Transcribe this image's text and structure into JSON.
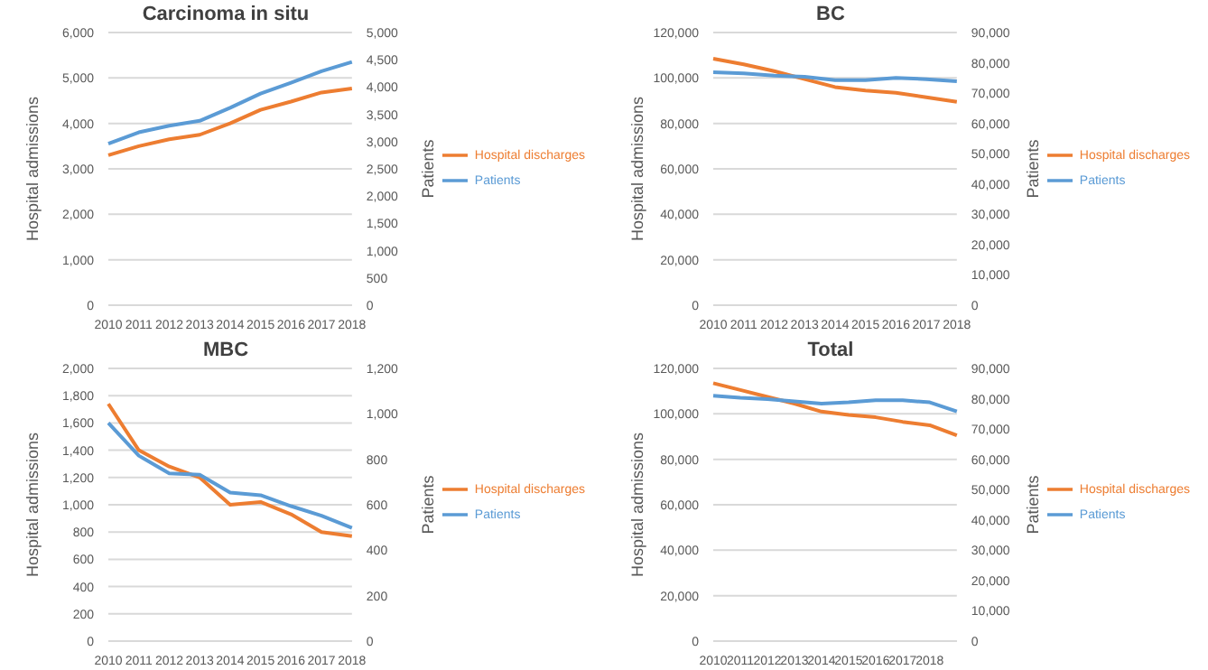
{
  "chart_data": [
    {
      "type": "line",
      "title": "Carcinoma in situ",
      "ylabel": "Hospital admissions",
      "y2label": "Patients",
      "categories": [
        "2010",
        "2011",
        "2012",
        "2013",
        "2014",
        "2015",
        "2016",
        "2017",
        "2018"
      ],
      "series": [
        {
          "name": "Hospital discharges",
          "color": "#ed7d31",
          "values": [
            3300,
            3500,
            3650,
            3750,
            4000,
            4300,
            4480,
            4680,
            4770
          ]
        },
        {
          "name": "Patients",
          "color": "#5b9bd5",
          "axis": "y2",
          "values": [
            2960,
            3170,
            3290,
            3380,
            3620,
            3880,
            4080,
            4290,
            4460
          ]
        }
      ],
      "ylim": [
        0,
        6000
      ],
      "yticks": [
        0,
        {
          "value": 1000,
          "label": "1,000"
        },
        {
          "value": 2000,
          "label": "2,000"
        },
        {
          "value": 3000,
          "label": "3,000"
        },
        {
          "value": 4000,
          "label": "4,000"
        },
        {
          "value": 5000,
          "label": "5,000"
        },
        {
          "value": 6000,
          "label": "6,000"
        }
      ],
      "y2lim": [
        0,
        5000
      ],
      "y2ticks": [
        0,
        500,
        {
          "value": 1000,
          "label": "1,000"
        },
        {
          "value": 1500,
          "label": "1,500"
        },
        {
          "value": 2000,
          "label": "2,000"
        },
        {
          "value": 2500,
          "label": "2,500"
        },
        {
          "value": 3000,
          "label": "3,000"
        },
        {
          "value": 3500,
          "label": "3,500"
        },
        {
          "value": 4000,
          "label": "4,000"
        },
        {
          "value": 4500,
          "label": "4,500"
        },
        {
          "value": 5000,
          "label": "5,000"
        }
      ],
      "grid": "y",
      "legend": "right",
      "marker": "none",
      "line_style": "solid"
    },
    {
      "type": "line",
      "title": "BC",
      "ylabel": "Hospital admissions",
      "y2label": "Patients",
      "categories": [
        "2010",
        "2011",
        "2012",
        "2013",
        "2014",
        "2015",
        "2016",
        "2017",
        "2018"
      ],
      "series": [
        {
          "name": "Hospital discharges",
          "color": "#ed7d31",
          "values": [
            108500,
            106000,
            103000,
            99500,
            96000,
            94500,
            93500,
            91500,
            89500
          ]
        },
        {
          "name": "Patients",
          "color": "#5b9bd5",
          "axis": "y2",
          "values": [
            76900,
            76500,
            75800,
            75400,
            74300,
            74300,
            75000,
            74600,
            73900
          ]
        }
      ],
      "ylim": [
        0,
        120000
      ],
      "yticks": [
        0,
        {
          "value": 20000,
          "label": "20,000"
        },
        {
          "value": 40000,
          "label": "40,000"
        },
        {
          "value": 60000,
          "label": "60,000"
        },
        {
          "value": 80000,
          "label": "80,000"
        },
        {
          "value": 100000,
          "label": "100,000"
        },
        {
          "value": 120000,
          "label": "120,000"
        }
      ],
      "y2lim": [
        0,
        90000
      ],
      "y2ticks": [
        0,
        {
          "value": 10000,
          "label": "10,000"
        },
        {
          "value": 20000,
          "label": "20,000"
        },
        {
          "value": 30000,
          "label": "30,000"
        },
        {
          "value": 40000,
          "label": "40,000"
        },
        {
          "value": 50000,
          "label": "50,000"
        },
        {
          "value": 60000,
          "label": "60,000"
        },
        {
          "value": 70000,
          "label": "70,000"
        },
        {
          "value": 80000,
          "label": "80,000"
        },
        {
          "value": 90000,
          "label": "90,000"
        }
      ],
      "grid": "y",
      "legend": "right",
      "marker": "none",
      "line_style": "solid"
    },
    {
      "type": "line",
      "title": "MBC",
      "ylabel": "Hospital admissions",
      "y2label": "Patients",
      "categories": [
        "2010",
        "2011",
        "2012",
        "2013",
        "2014",
        "2015",
        "2016",
        "2017",
        "2018"
      ],
      "series": [
        {
          "name": "Hospital discharges",
          "color": "#ed7d31",
          "values": [
            1740,
            1400,
            1280,
            1200,
            1000,
            1020,
            930,
            800,
            770
          ]
        },
        {
          "name": "Patients",
          "color": "#5b9bd5",
          "axis": "y2",
          "values": [
            960,
            816,
            738,
            732,
            654,
            642,
            594,
            552,
            498
          ]
        }
      ],
      "ylim": [
        0,
        2000
      ],
      "yticks": [
        0,
        200,
        400,
        600,
        800,
        {
          "value": 1000,
          "label": "1,000"
        },
        {
          "value": 1200,
          "label": "1,200"
        },
        {
          "value": 1400,
          "label": "1,400"
        },
        {
          "value": 1600,
          "label": "1,600"
        },
        {
          "value": 1800,
          "label": "1,800"
        },
        {
          "value": 2000,
          "label": "2,000"
        }
      ],
      "y2lim": [
        0,
        1200
      ],
      "y2ticks": [
        0,
        200,
        400,
        600,
        800,
        {
          "value": 1000,
          "label": "1,000"
        },
        {
          "value": 1200,
          "label": "1,200"
        }
      ],
      "grid": "y",
      "legend": "right",
      "marker": "none",
      "line_style": "solid"
    },
    {
      "type": "line",
      "title": "Total",
      "ylabel": "Hospital admissions",
      "y2label": "Patients",
      "categories": [
        "2010",
        "2011",
        "2012",
        "2013",
        "2014",
        "2015",
        "2016",
        "2017",
        "2018",
        null
      ],
      "series": [
        {
          "name": "Hospital discharges",
          "color": "#ed7d31",
          "values": [
            113500,
            110500,
            107500,
            104500,
            101000,
            99500,
            98500,
            96500,
            95000,
            90500
          ]
        },
        {
          "name": "Patients",
          "color": "#5b9bd5",
          "axis": "y2",
          "values": [
            81000,
            80300,
            79900,
            79100,
            78400,
            78800,
            79500,
            79500,
            78800,
            75800
          ]
        }
      ],
      "ylim": [
        0,
        120000
      ],
      "yticks": [
        0,
        {
          "value": 20000,
          "label": "20,000"
        },
        {
          "value": 40000,
          "label": "40,000"
        },
        {
          "value": 60000,
          "label": "60,000"
        },
        {
          "value": 80000,
          "label": "80,000"
        },
        {
          "value": 100000,
          "label": "100,000"
        },
        {
          "value": 120000,
          "label": "120,000"
        }
      ],
      "y2lim": [
        0,
        90000
      ],
      "y2ticks": [
        0,
        {
          "value": 10000,
          "label": "10,000"
        },
        {
          "value": 20000,
          "label": "20,000"
        },
        {
          "value": 30000,
          "label": "30,000"
        },
        {
          "value": 40000,
          "label": "40,000"
        },
        {
          "value": 50000,
          "label": "50,000"
        },
        {
          "value": 60000,
          "label": "60,000"
        },
        {
          "value": 70000,
          "label": "70,000"
        },
        {
          "value": 80000,
          "label": "80,000"
        },
        {
          "value": 90000,
          "label": "90,000"
        }
      ],
      "grid": "y",
      "legend": "right",
      "marker": "none",
      "line_style": "solid"
    }
  ]
}
